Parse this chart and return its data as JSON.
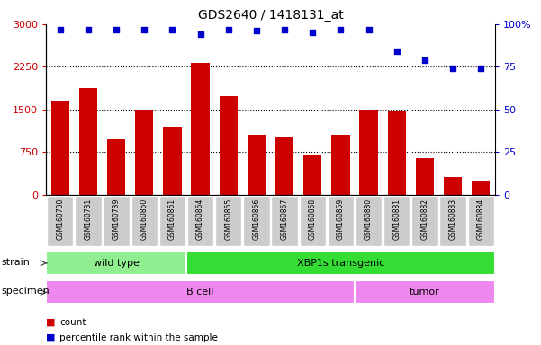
{
  "title": "GDS2640 / 1418131_at",
  "samples": [
    "GSM160730",
    "GSM160731",
    "GSM160739",
    "GSM160860",
    "GSM160861",
    "GSM160864",
    "GSM160865",
    "GSM160866",
    "GSM160867",
    "GSM160868",
    "GSM160869",
    "GSM160880",
    "GSM160881",
    "GSM160882",
    "GSM160883",
    "GSM160884"
  ],
  "counts": [
    1650,
    1880,
    980,
    1500,
    1200,
    2320,
    1740,
    1050,
    1030,
    700,
    1050,
    1500,
    1490,
    650,
    310,
    250
  ],
  "percentiles": [
    97,
    97,
    97,
    97,
    97,
    94,
    97,
    96,
    97,
    95,
    97,
    97,
    84,
    79,
    74,
    74
  ],
  "ylim_left": [
    0,
    3000
  ],
  "ylim_right": [
    0,
    100
  ],
  "yticks_left": [
    0,
    750,
    1500,
    2250,
    3000
  ],
  "yticks_right": [
    0,
    25,
    50,
    75,
    100
  ],
  "bar_color": "#cc0000",
  "dot_color": "#0000cc",
  "strain_groups": [
    {
      "label": "wild type",
      "start": 0,
      "end": 5,
      "color": "#90ee90"
    },
    {
      "label": "XBP1s transgenic",
      "start": 5,
      "end": 16,
      "color": "#33dd33"
    }
  ],
  "specimen_groups": [
    {
      "label": "B cell",
      "start": 0,
      "end": 11,
      "color": "#ee88ee"
    },
    {
      "label": "tumor",
      "start": 11,
      "end": 16,
      "color": "#ee88ee"
    }
  ],
  "legend_items": [
    {
      "label": "count",
      "color": "#cc0000"
    },
    {
      "label": "percentile rank within the sample",
      "color": "#0000cc"
    }
  ],
  "background_color": "#ffffff",
  "tick_label_area_color": "#cccccc"
}
